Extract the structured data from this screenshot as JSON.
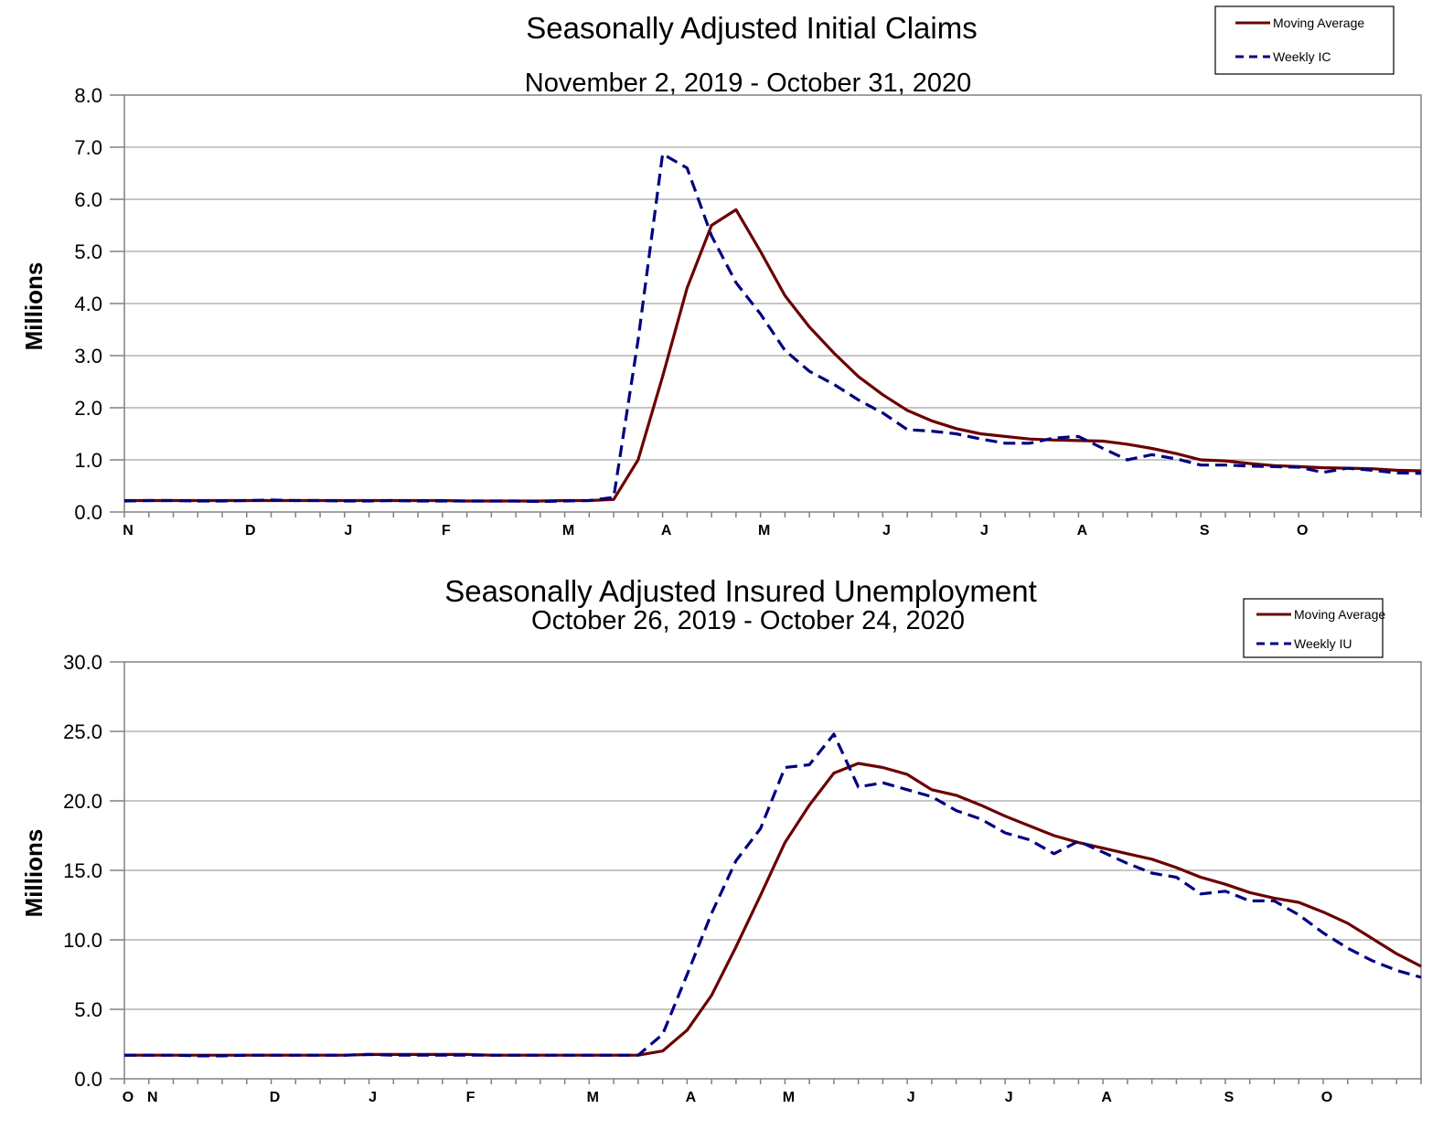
{
  "colors": {
    "moving_average": "#6b0000",
    "weekly": "#000080"
  },
  "chart_data": [
    {
      "type": "line",
      "title": "Seasonally Adjusted Initial Claims",
      "subtitle": "November 2, 2019 - October 31, 2020",
      "ylabel": "Millions",
      "ylim": [
        0,
        8
      ],
      "yticks": [
        "0.0",
        "1.0",
        "2.0",
        "3.0",
        "4.0",
        "5.0",
        "6.0",
        "7.0",
        "8.0"
      ],
      "month_labels": [
        {
          "label": "N",
          "week": 0
        },
        {
          "label": "D",
          "week": 5
        },
        {
          "label": "J",
          "week": 9
        },
        {
          "label": "F",
          "week": 13
        },
        {
          "label": "M",
          "week": 18
        },
        {
          "label": "A",
          "week": 22
        },
        {
          "label": "M",
          "week": 26
        },
        {
          "label": "J",
          "week": 31
        },
        {
          "label": "J",
          "week": 35
        },
        {
          "label": "A",
          "week": 39
        },
        {
          "label": "S",
          "week": 44
        },
        {
          "label": "O",
          "week": 48
        }
      ],
      "grid": true,
      "legend_position": "top-right",
      "series": [
        {
          "name": "Moving Average",
          "style": "solid",
          "values": [
            0.22,
            0.22,
            0.22,
            0.22,
            0.22,
            0.22,
            0.22,
            0.22,
            0.22,
            0.22,
            0.22,
            0.22,
            0.22,
            0.22,
            0.21,
            0.21,
            0.21,
            0.21,
            0.22,
            0.22,
            0.24,
            1.0,
            2.6,
            4.3,
            5.5,
            5.8,
            5.0,
            4.15,
            3.55,
            3.05,
            2.6,
            2.25,
            1.95,
            1.75,
            1.6,
            1.5,
            1.45,
            1.4,
            1.38,
            1.37,
            1.36,
            1.3,
            1.22,
            1.12,
            1.0,
            0.98,
            0.93,
            0.89,
            0.87,
            0.85,
            0.84,
            0.83,
            0.8,
            0.79
          ]
        },
        {
          "name": "Weekly IC",
          "style": "dashed",
          "values": [
            0.21,
            0.22,
            0.22,
            0.21,
            0.21,
            0.22,
            0.23,
            0.22,
            0.22,
            0.21,
            0.21,
            0.22,
            0.21,
            0.21,
            0.21,
            0.21,
            0.21,
            0.2,
            0.21,
            0.22,
            0.28,
            3.3,
            6.87,
            6.6,
            5.3,
            4.4,
            3.8,
            3.1,
            2.7,
            2.45,
            2.15,
            1.9,
            1.58,
            1.55,
            1.5,
            1.4,
            1.32,
            1.32,
            1.42,
            1.45,
            1.22,
            1.0,
            1.1,
            1.02,
            0.9,
            0.9,
            0.88,
            0.87,
            0.86,
            0.76,
            0.84,
            0.8,
            0.75,
            0.74
          ]
        }
      ]
    },
    {
      "type": "line",
      "title": "Seasonally Adjusted Insured Unemployment",
      "subtitle": "October 26, 2019 - October 24, 2020",
      "ylabel": "Millions",
      "ylim": [
        0,
        30
      ],
      "yticks": [
        "0.0",
        "5.0",
        "10.0",
        "15.0",
        "20.0",
        "25.0",
        "30.0"
      ],
      "month_labels": [
        {
          "label": "O",
          "week": 0
        },
        {
          "label": "N",
          "week": 1
        },
        {
          "label": "D",
          "week": 6
        },
        {
          "label": "J",
          "week": 10
        },
        {
          "label": "F",
          "week": 14
        },
        {
          "label": "M",
          "week": 19
        },
        {
          "label": "A",
          "week": 23
        },
        {
          "label": "M",
          "week": 27
        },
        {
          "label": "J",
          "week": 32
        },
        {
          "label": "J",
          "week": 36
        },
        {
          "label": "A",
          "week": 40
        },
        {
          "label": "S",
          "week": 45
        },
        {
          "label": "O",
          "week": 49
        }
      ],
      "grid": true,
      "legend_position": "top-right",
      "series": [
        {
          "name": "Moving Average",
          "style": "solid",
          "values": [
            1.7,
            1.7,
            1.7,
            1.7,
            1.7,
            1.7,
            1.7,
            1.7,
            1.7,
            1.7,
            1.75,
            1.75,
            1.75,
            1.75,
            1.75,
            1.7,
            1.7,
            1.7,
            1.7,
            1.7,
            1.7,
            1.7,
            2.0,
            3.5,
            6.0,
            9.5,
            13.2,
            17.0,
            19.7,
            22.0,
            22.7,
            22.4,
            21.9,
            20.8,
            20.4,
            19.7,
            18.9,
            18.2,
            17.5,
            17.0,
            16.6,
            16.2,
            15.8,
            15.2,
            14.5,
            14.0,
            13.4,
            13.0,
            12.7,
            12.0,
            11.2,
            10.1,
            9.0,
            8.1
          ]
        },
        {
          "name": "Weekly IU",
          "style": "dashed",
          "values": [
            1.7,
            1.7,
            1.7,
            1.65,
            1.65,
            1.7,
            1.7,
            1.7,
            1.7,
            1.7,
            1.75,
            1.7,
            1.7,
            1.7,
            1.7,
            1.7,
            1.7,
            1.7,
            1.7,
            1.7,
            1.7,
            1.7,
            3.2,
            7.5,
            11.9,
            15.7,
            18.0,
            22.4,
            22.6,
            24.8,
            21.0,
            21.3,
            20.8,
            20.3,
            19.3,
            18.7,
            17.7,
            17.2,
            16.2,
            17.1,
            16.3,
            15.5,
            14.8,
            14.5,
            13.3,
            13.5,
            12.8,
            12.8,
            11.8,
            10.5,
            9.4,
            8.5,
            7.8,
            7.3
          ]
        }
      ]
    }
  ]
}
